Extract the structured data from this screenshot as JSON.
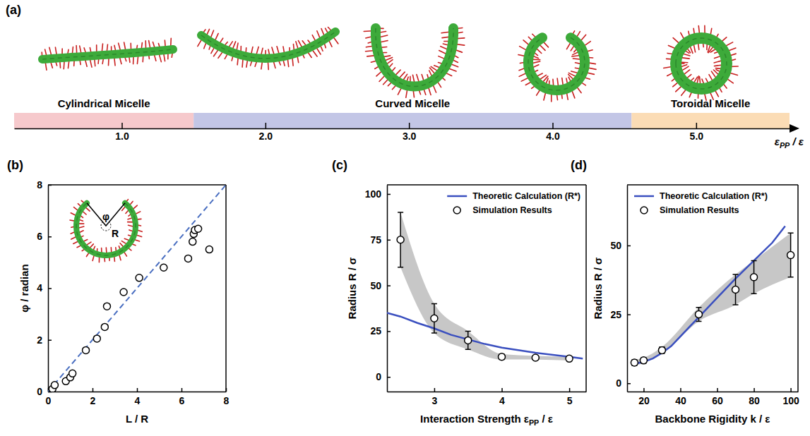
{
  "chart_data": [
    {
      "panel": "(a)",
      "type": "band",
      "x_label": "εPP / ε",
      "xlim": [
        0.25,
        5.65
      ],
      "xticks": [
        {
          "value": 1,
          "label": "1.0"
        },
        {
          "value": 2,
          "label": "2.0"
        },
        {
          "value": 3,
          "label": "3.0"
        },
        {
          "value": 4,
          "label": "4.0"
        },
        {
          "value": 5,
          "label": "5.0"
        }
      ],
      "regions": [
        {
          "name": "Cylindrical Micelle",
          "from": 0.25,
          "to": 1.5,
          "color": "#f6c9cc"
        },
        {
          "name": "Curved Micelle",
          "from": 1.5,
          "to": 4.55,
          "color": "#c3c6e6"
        },
        {
          "name": "Toroidal Micelle",
          "from": 4.55,
          "to": 5.65,
          "color": "#fbdcb5"
        }
      ]
    },
    {
      "panel": "(b)",
      "type": "scatter",
      "x_label": "L / R",
      "y_label": "φ / radian",
      "xlim": [
        0,
        8
      ],
      "ylim": [
        0,
        8
      ],
      "xticks": [
        0,
        2,
        4,
        6,
        8
      ],
      "yticks": [
        0,
        2,
        4,
        6,
        8
      ],
      "annotations": [
        "φ",
        "R"
      ],
      "series": [
        {
          "type": "scatter",
          "marker": "circle",
          "color": "#000000",
          "x": [
            0.2,
            0.3,
            0.8,
            1.0,
            1.1,
            1.7,
            2.2,
            2.55,
            2.65,
            3.4,
            4.1,
            5.2,
            6.3,
            6.5,
            6.55,
            6.6,
            6.75,
            7.25
          ],
          "values": [
            0.1,
            0.25,
            0.4,
            0.55,
            0.7,
            1.6,
            2.05,
            2.5,
            3.3,
            3.85,
            4.4,
            4.8,
            5.15,
            5.8,
            6.1,
            6.25,
            6.3,
            5.5
          ]
        },
        {
          "type": "line",
          "line_style": "dashed",
          "color": "#4a6fc1",
          "x": [
            0,
            8
          ],
          "values": [
            0,
            8
          ]
        }
      ]
    },
    {
      "panel": "(c)",
      "type": "scatter",
      "x_label": "Interaction Strength εPP / ε",
      "y_label": "Radius R / σ",
      "xlim": [
        2.3,
        5.25
      ],
      "ylim": [
        -8,
        105
      ],
      "xticks": [
        3,
        4,
        5
      ],
      "yticks": [
        0,
        25,
        50,
        75,
        100
      ],
      "legend": "upper right",
      "series": [
        {
          "name": "Theoretic Calculation (R*)",
          "type": "line",
          "color": "#3a4fbf",
          "x": [
            2.3,
            2.5,
            2.75,
            3,
            3.25,
            3.5,
            3.75,
            4,
            4.5,
            5,
            5.2
          ],
          "values": [
            35,
            33,
            29.5,
            26.5,
            23,
            20.5,
            18,
            16,
            13.2,
            11,
            10
          ]
        },
        {
          "name": "Simulation Results",
          "type": "scatter",
          "marker": "circle",
          "color": "#000000",
          "x": [
            2.5,
            3,
            3.5,
            4,
            4.5,
            5
          ],
          "values": [
            75,
            32,
            20,
            11,
            10.5,
            10
          ],
          "errors": [
            15,
            8,
            5,
            1.5,
            1,
            1
          ]
        }
      ]
    },
    {
      "panel": "(d)",
      "type": "scatter",
      "x_label": "Backbone Rigidity k / ε",
      "y_label": "Radius R / σ",
      "xlim": [
        11,
        104
      ],
      "ylim": [
        -3,
        72
      ],
      "xticks": [
        20,
        40,
        60,
        80,
        100
      ],
      "yticks": [
        0,
        25,
        50
      ],
      "legend": "upper left",
      "series": [
        {
          "name": "Theoretic Calculation (R*)",
          "type": "line",
          "color": "#3a4fbf",
          "x": [
            15,
            20,
            25,
            30,
            35,
            40,
            45,
            50,
            60,
            70,
            80,
            90,
            97
          ],
          "values": [
            7,
            7.8,
            9,
            11,
            13.5,
            17,
            20.5,
            24,
            31,
            38,
            44.5,
            51,
            57
          ]
        },
        {
          "name": "Simulation Results",
          "type": "scatter",
          "marker": "circle",
          "color": "#000000",
          "x": [
            15,
            20,
            30,
            50,
            70,
            80,
            100
          ],
          "values": [
            7.5,
            8.3,
            12,
            25,
            34,
            38.5,
            46.5
          ],
          "errors": [
            1,
            1,
            1.2,
            2.5,
            5.5,
            6,
            8
          ]
        }
      ]
    }
  ]
}
